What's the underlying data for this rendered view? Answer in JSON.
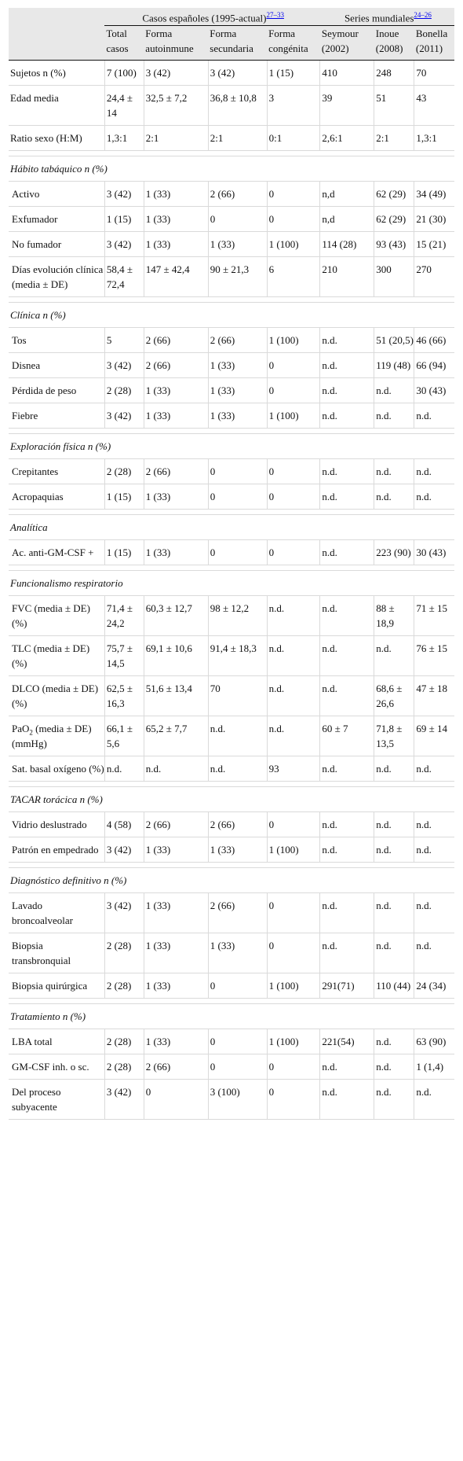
{
  "header": {
    "group_spanish": "Casos españoles (1995-actual)",
    "group_spanish_ref": "27–33",
    "group_world": "Series mundiales",
    "group_world_ref": "24–26",
    "columns": [
      "Total casos",
      "Forma autoinmune",
      "Forma secundaria",
      "Forma congénita",
      "Seymour (2002)",
      "Inoue (2008)",
      "Bonella (2011)"
    ]
  },
  "rows": [
    {
      "type": "data",
      "cells": [
        "Sujetos n (%)",
        "7 (100)",
        "3 (42)",
        "3 (42)",
        "1 (15)",
        "410",
        "248",
        "70"
      ]
    },
    {
      "type": "data",
      "cells": [
        "Edad media",
        "24,4 ± 14",
        "32,5 ± 7,2",
        "36,8 ± 10,8",
        "3",
        "39",
        "51",
        "43"
      ]
    },
    {
      "type": "data",
      "cells": [
        "Ratio sexo (H:M)",
        "1,3:1",
        "2:1",
        "2:1",
        "0:1",
        "2,6:1",
        "2:1",
        "1,3:1"
      ]
    },
    {
      "type": "spacer"
    },
    {
      "type": "section",
      "label": "Hábito tabáquico n (%)"
    },
    {
      "type": "data",
      "cells": [
        "Activo",
        "3 (42)",
        "1 (33)",
        "2 (66)",
        "0",
        "n,d",
        "62 (29)",
        "34 (49)"
      ]
    },
    {
      "type": "data",
      "cells": [
        "Exfumador",
        "1 (15)",
        "1 (33)",
        "0",
        "0",
        "n,d",
        "62 (29)",
        "21 (30)"
      ]
    },
    {
      "type": "data",
      "cells": [
        "No fumador",
        "3 (42)",
        "1 (33)",
        "1 (33)",
        "1 (100)",
        "114 (28)",
        "93 (43)",
        "15 (21)"
      ]
    },
    {
      "type": "data",
      "cells": [
        "Días evolución clínica (media ± DE)",
        "58,4 ± 72,4",
        "147 ± 42,4",
        "90 ± 21,3",
        "6",
        "210",
        "300",
        "270"
      ]
    },
    {
      "type": "spacer"
    },
    {
      "type": "section",
      "label": "Clínica n (%)"
    },
    {
      "type": "data",
      "cells": [
        "Tos",
        "5",
        "2 (66)",
        "2 (66)",
        "1 (100)",
        "n.d.",
        "51 (20,5)",
        "46 (66)"
      ]
    },
    {
      "type": "data",
      "cells": [
        "Disnea",
        "3 (42)",
        "2 (66)",
        "1 (33)",
        "0",
        "n.d.",
        "119 (48)",
        "66 (94)"
      ]
    },
    {
      "type": "data",
      "cells": [
        "Pérdida de peso",
        "2 (28)",
        "1 (33)",
        "1 (33)",
        "0",
        "n.d.",
        "n.d.",
        "30 (43)"
      ]
    },
    {
      "type": "data",
      "cells": [
        "Fiebre",
        "3 (42)",
        "1 (33)",
        "1 (33)",
        "1 (100)",
        "n.d.",
        "n.d.",
        "n.d."
      ]
    },
    {
      "type": "spacer"
    },
    {
      "type": "section",
      "label": "Exploración física n (%)"
    },
    {
      "type": "data",
      "cells": [
        "Crepitantes",
        "2 (28)",
        "2 (66)",
        "0",
        "0",
        "n.d.",
        "n.d.",
        "n.d."
      ]
    },
    {
      "type": "data",
      "cells": [
        "Acropaquias",
        "1 (15)",
        "1 (33)",
        "0",
        "0",
        "n.d.",
        "n.d.",
        "n.d."
      ]
    },
    {
      "type": "spacer"
    },
    {
      "type": "section",
      "label": "Analítica"
    },
    {
      "type": "data",
      "cells": [
        "Ac. anti-GM-CSF +",
        "1 (15)",
        "1 (33)",
        "0",
        "0",
        "n.d.",
        "223 (90)",
        "30 (43)"
      ]
    },
    {
      "type": "spacer"
    },
    {
      "type": "section",
      "label": "Funcionalismo respiratorio"
    },
    {
      "type": "data",
      "cells": [
        "FVC (media ± DE) (%)",
        "71,4 ± 24,2",
        "60,3 ± 12,7",
        "98 ± 12,2",
        "n.d.",
        "n.d.",
        "88 ± 18,9",
        "71 ± 15"
      ]
    },
    {
      "type": "data",
      "cells": [
        "TLC (media ± DE) (%)",
        "75,7 ± 14,5",
        "69,1 ± 10,6",
        "91,4 ± 18,3",
        "n.d.",
        "n.d.",
        "n.d.",
        "76 ± 15"
      ]
    },
    {
      "type": "data",
      "cells": [
        "DLCO (media ± DE) (%)",
        "62,5 ± 16,3",
        "51,6 ± 13,4",
        "70",
        "n.d.",
        "n.d.",
        "68,6 ± 26,6",
        "47 ± 18"
      ]
    },
    {
      "type": "data",
      "pao2": true,
      "label_pre": "PaO",
      "label_sub": "2",
      "label_post": " (media ± DE) (mmHg)",
      "cells": [
        "",
        "66,1 ± 5,6",
        "65,2 ± 7,7",
        "n.d.",
        "n.d.",
        "60 ± 7",
        "71,8 ± 13,5",
        "69 ± 14"
      ]
    },
    {
      "type": "data",
      "cells": [
        "Sat. basal oxígeno (%)",
        "n.d.",
        "n.d.",
        "n.d.",
        "93",
        "n.d.",
        "n.d.",
        "n.d."
      ]
    },
    {
      "type": "spacer"
    },
    {
      "type": "section",
      "label": "TACAR torácica n (%)"
    },
    {
      "type": "data",
      "cells": [
        "Vidrio deslustrado",
        "4 (58)",
        "2 (66)",
        "2 (66)",
        "0",
        "n.d.",
        "n.d.",
        "n.d."
      ]
    },
    {
      "type": "data",
      "cells": [
        "Patrón en empedrado",
        "3 (42)",
        "1 (33)",
        "1 (33)",
        "1 (100)",
        "n.d.",
        "n.d.",
        "n.d."
      ]
    },
    {
      "type": "spacer"
    },
    {
      "type": "section",
      "label": "Diagnóstico definitivo n (%)"
    },
    {
      "type": "data",
      "cells": [
        "Lavado broncoalveolar",
        "3 (42)",
        "1 (33)",
        "2 (66)",
        "0",
        "n.d.",
        "n.d.",
        "n.d."
      ]
    },
    {
      "type": "data",
      "cells": [
        "Biopsia transbronquial",
        "2 (28)",
        "1 (33)",
        "1 (33)",
        "0",
        "n.d.",
        "n.d.",
        "n.d."
      ]
    },
    {
      "type": "data",
      "cells": [
        "Biopsia quirúrgica",
        "2 (28)",
        "1 (33)",
        "0",
        "1 (100)",
        "291(71)",
        "110 (44)",
        "24 (34)"
      ]
    },
    {
      "type": "spacer"
    },
    {
      "type": "section",
      "label": "Tratamiento n (%)"
    },
    {
      "type": "data",
      "cells": [
        "LBA total",
        "2 (28)",
        "1 (33)",
        "0",
        "1 (100)",
        "221(54)",
        "n.d.",
        "63 (90)"
      ]
    },
    {
      "type": "data",
      "cells": [
        "GM-CSF inh. o sc.",
        "2 (28)",
        "2 (66)",
        "0",
        "0",
        "n.d.",
        "n.d.",
        "1 (1,4)"
      ]
    },
    {
      "type": "data",
      "cells": [
        "Del proceso subyacente",
        "3 (42)",
        "0",
        "3 (100)",
        "0",
        "n.d.",
        "n.d.",
        "n.d."
      ]
    }
  ]
}
